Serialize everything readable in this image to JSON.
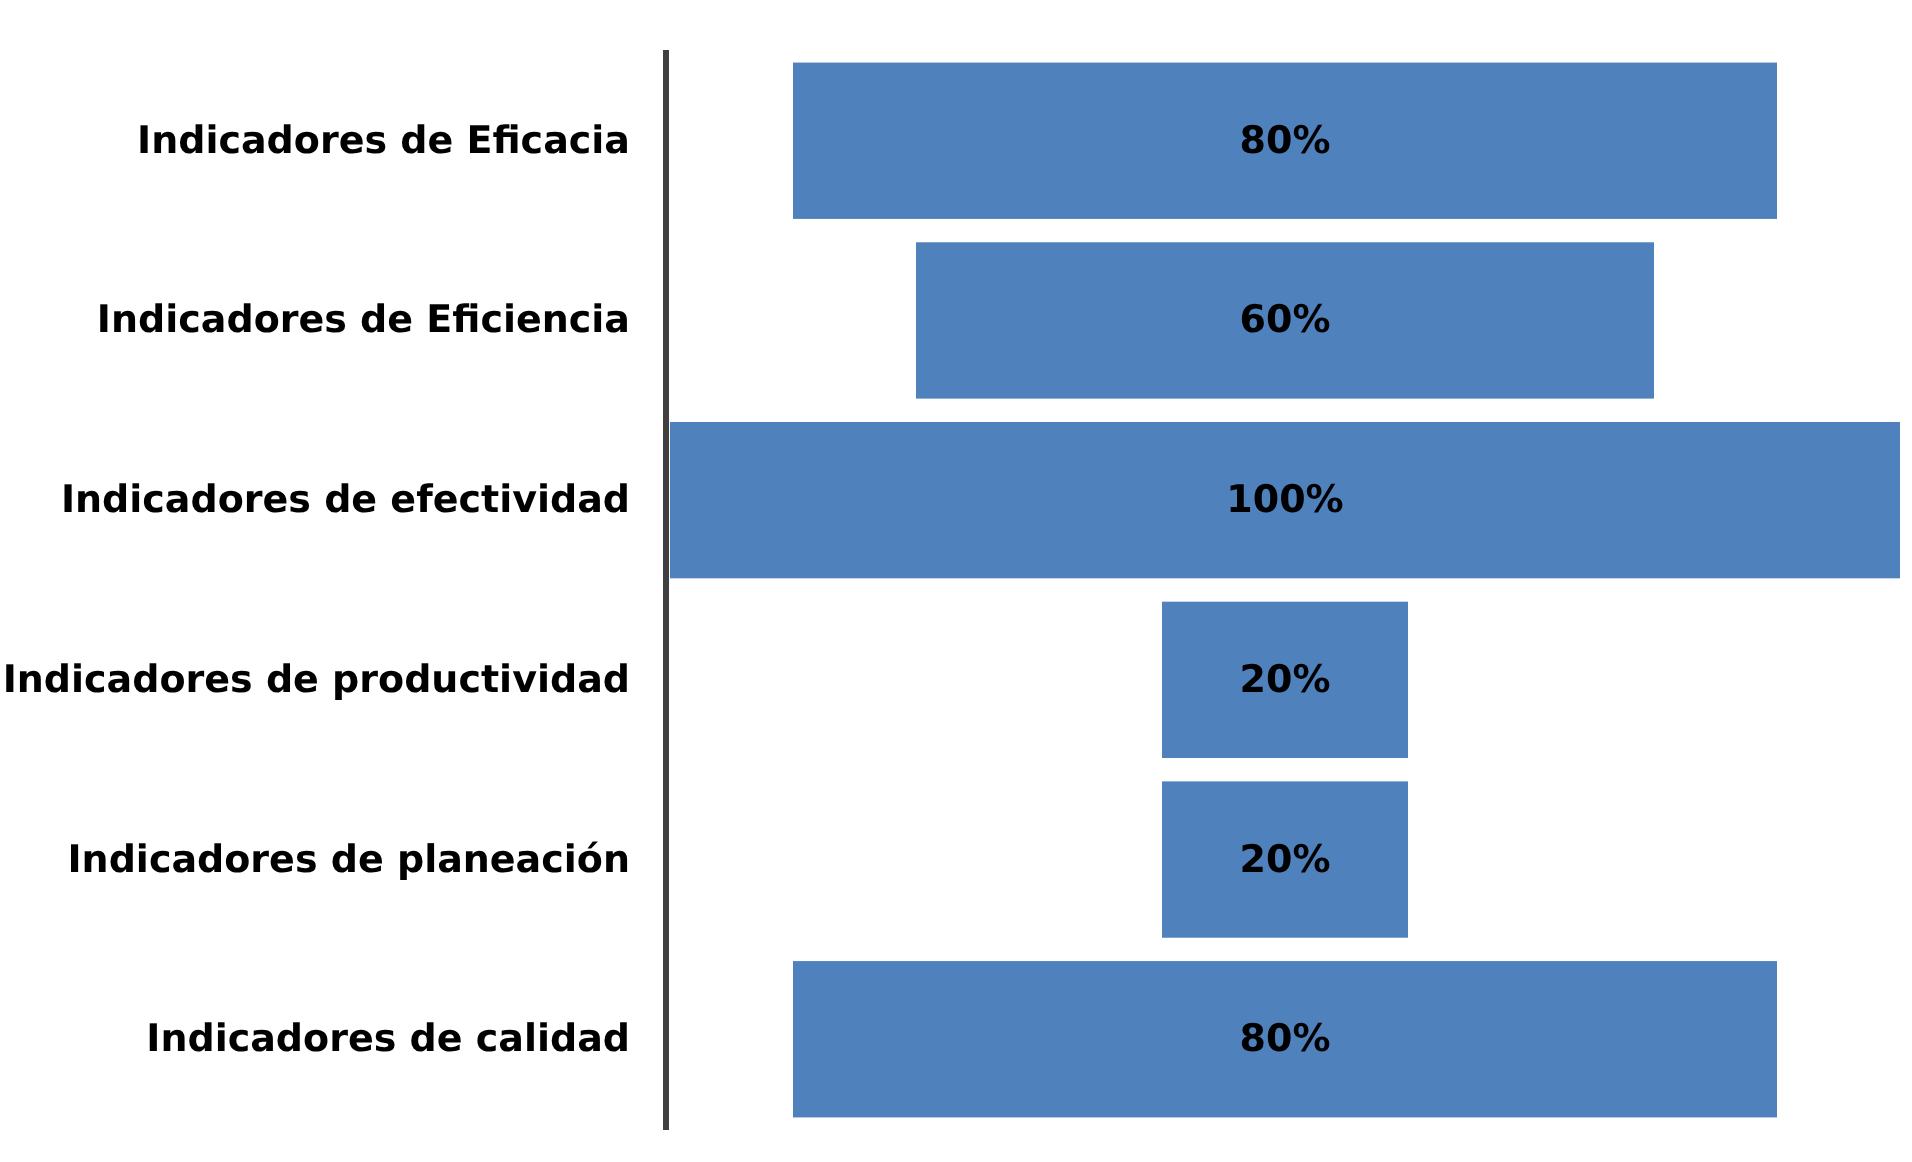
{
  "chart_data": {
    "type": "other",
    "categories": [
      "Indicadores de Eficacia",
      "Indicadores de Eficiencia",
      "Indicadores de efectividad",
      "Indicadores de productividad",
      "Indicadores de planeación",
      "Indicadores de calidad"
    ],
    "values": [
      80,
      60,
      100,
      20,
      20,
      80
    ],
    "value_labels": [
      "80%",
      "60%",
      "100%",
      "20%",
      "20%",
      "80%"
    ],
    "color": "#4f81bd"
  }
}
